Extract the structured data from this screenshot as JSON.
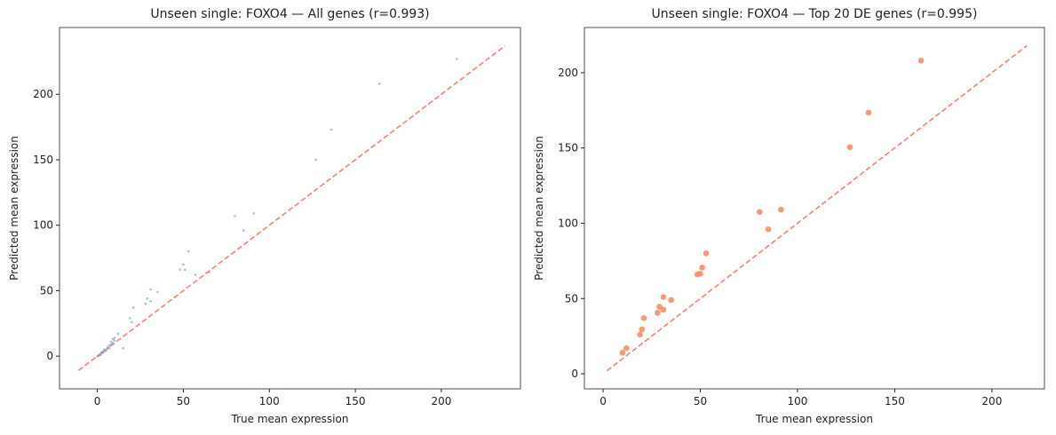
{
  "chart_data": [
    {
      "type": "scatter",
      "title": "Unseen single: FOXO4 — All genes (r=0.993)",
      "x_label": "True mean expression",
      "y_label": "Predicted mean expression",
      "xlim": [
        -22,
        246
      ],
      "ylim": [
        -25,
        251
      ],
      "xticks": [
        0,
        50,
        100,
        150,
        200
      ],
      "yticks": [
        0,
        50,
        100,
        150,
        200
      ],
      "series": [
        {
          "name": "All genes",
          "color": "#5b9bd5",
          "x": [
            209,
            164,
            136,
            127,
            91,
            80,
            85,
            53,
            50,
            51,
            48,
            57,
            65,
            31,
            35,
            29,
            31,
            28,
            21,
            19,
            20,
            12,
            10,
            15,
            0,
            1,
            2,
            3,
            4,
            5,
            6,
            7,
            8,
            9,
            10,
            2,
            1,
            3,
            5,
            6,
            7,
            8,
            9,
            4,
            0.5,
            1.5,
            2.5,
            3.5
          ],
          "y": [
            227,
            208,
            173,
            150,
            109,
            107,
            96,
            80,
            70,
            66,
            66,
            62,
            64,
            51,
            49,
            44,
            42,
            40,
            37,
            29,
            26,
            17,
            14,
            6,
            0,
            1,
            2,
            3,
            4,
            5,
            6,
            8,
            9,
            10,
            12,
            1,
            0.5,
            2.5,
            4,
            7,
            6,
            11,
            13,
            5,
            0,
            1,
            3,
            3
          ]
        }
      ],
      "reference_line": {
        "x": [
          -11,
          237
        ],
        "y": [
          -11,
          237
        ],
        "color": "#fa8072"
      }
    },
    {
      "type": "scatter",
      "title": "Unseen single: FOXO4 — Top 20 DE genes (r=0.995)",
      "x_label": "True mean expression",
      "y_label": "Predicted mean expression",
      "xlim": [
        -9.6,
        227
      ],
      "ylim": [
        -10,
        230
      ],
      "xticks": [
        0,
        50,
        100,
        150,
        200
      ],
      "yticks": [
        0,
        50,
        100,
        150,
        200
      ],
      "series": [
        {
          "name": "Top 20 DE genes",
          "color": "#f4875f",
          "x": [
            163.5,
            136.5,
            127,
            91.5,
            80.5,
            85,
            53,
            51,
            50,
            48.5,
            31,
            35,
            29,
            31,
            28,
            21,
            20,
            19,
            12,
            10
          ],
          "y": [
            208,
            173.5,
            150.5,
            109,
            107.5,
            96,
            80,
            70.5,
            66.5,
            66,
            51,
            49,
            44.5,
            42.5,
            40.5,
            37,
            29.5,
            26,
            17,
            14
          ]
        }
      ],
      "reference_line": {
        "x": [
          2,
          218
        ],
        "y": [
          2,
          218
        ],
        "color": "#fa8072"
      }
    }
  ]
}
